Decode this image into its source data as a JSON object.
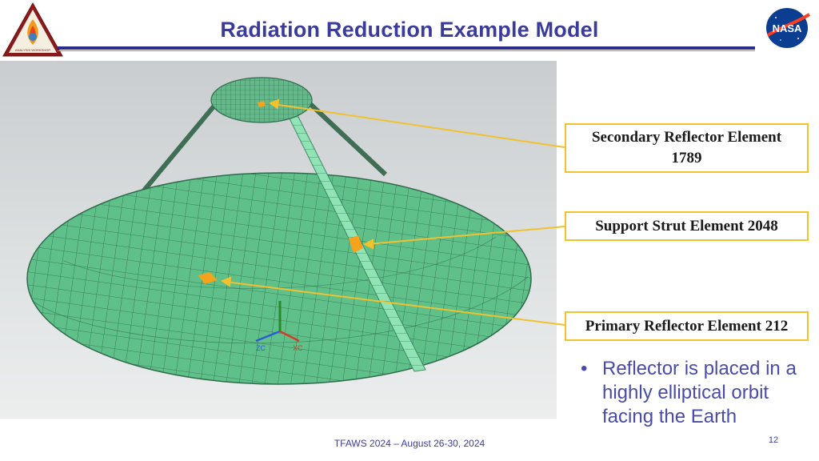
{
  "header": {
    "title": "Radiation Reduction Example Model"
  },
  "logos": {
    "left_name": "TFAWS Thermal & Fluids Analysis Workshop",
    "right_text": "NASA"
  },
  "model_view": {
    "axis_labels": [
      "ZC",
      "XC"
    ]
  },
  "callouts": {
    "secondary": "Secondary Reflector Element 1789",
    "strut": "Support Strut Element 2048",
    "primary": "Primary Reflector Element 212"
  },
  "body": {
    "bullet_marker": "•",
    "bullet_text": "Reflector is placed in a highly elliptical orbit facing the Earth"
  },
  "footer": {
    "text": "TFAWS 2024 – August 26-30, 2024",
    "page_number": "12"
  },
  "colors": {
    "title": "#3b3b9c",
    "callout_border": "#f2c12e",
    "mesh_green": "#5fc08a",
    "highlight": "#f7a21b"
  }
}
